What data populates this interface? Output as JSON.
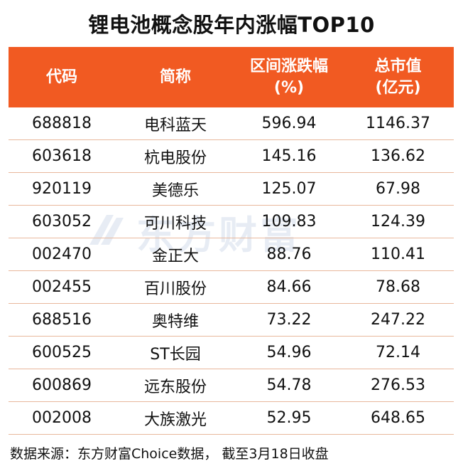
{
  "title": "锂电池概念股年内涨幅TOP10",
  "chart_data": {
    "type": "table",
    "columns": [
      "代码",
      "简称",
      "区间涨跌幅\n(%)",
      "总市值\n(亿元)"
    ],
    "rows": [
      [
        "688818",
        "电科蓝天",
        "596.94",
        "1146.37"
      ],
      [
        "603618",
        "杭电股份",
        "145.16",
        "136.62"
      ],
      [
        "920119",
        "美德乐",
        "125.07",
        "67.98"
      ],
      [
        "603052",
        "可川科技",
        "109.83",
        "124.39"
      ],
      [
        "002470",
        "金正大",
        "88.76",
        "110.41"
      ],
      [
        "002455",
        "百川股份",
        "84.66",
        "78.68"
      ],
      [
        "688516",
        "奥特维",
        "73.22",
        "247.22"
      ],
      [
        "600525",
        "ST长园",
        "54.96",
        "72.14"
      ],
      [
        "600869",
        "远东股份",
        "54.78",
        "276.53"
      ],
      [
        "002008",
        "大族激光",
        "52.95",
        "648.65"
      ]
    ]
  },
  "header": {
    "col0": "代码",
    "col1": "简称",
    "col2_line1": "区间涨跌幅",
    "col2_line2": "(%)",
    "col3_line1": "总市值",
    "col3_line2": "(亿元)"
  },
  "watermark": {
    "text": "东方财富",
    "icon": "eastmoney-logo-icon"
  },
  "footer": "数据来源：东方财富Choice数据， 截至3月18日收盘",
  "colors": {
    "header_bg": "#f15a22",
    "header_text": "#ffffff",
    "row_divider": "#e8b79c",
    "watermark": "#1f4e9c"
  }
}
